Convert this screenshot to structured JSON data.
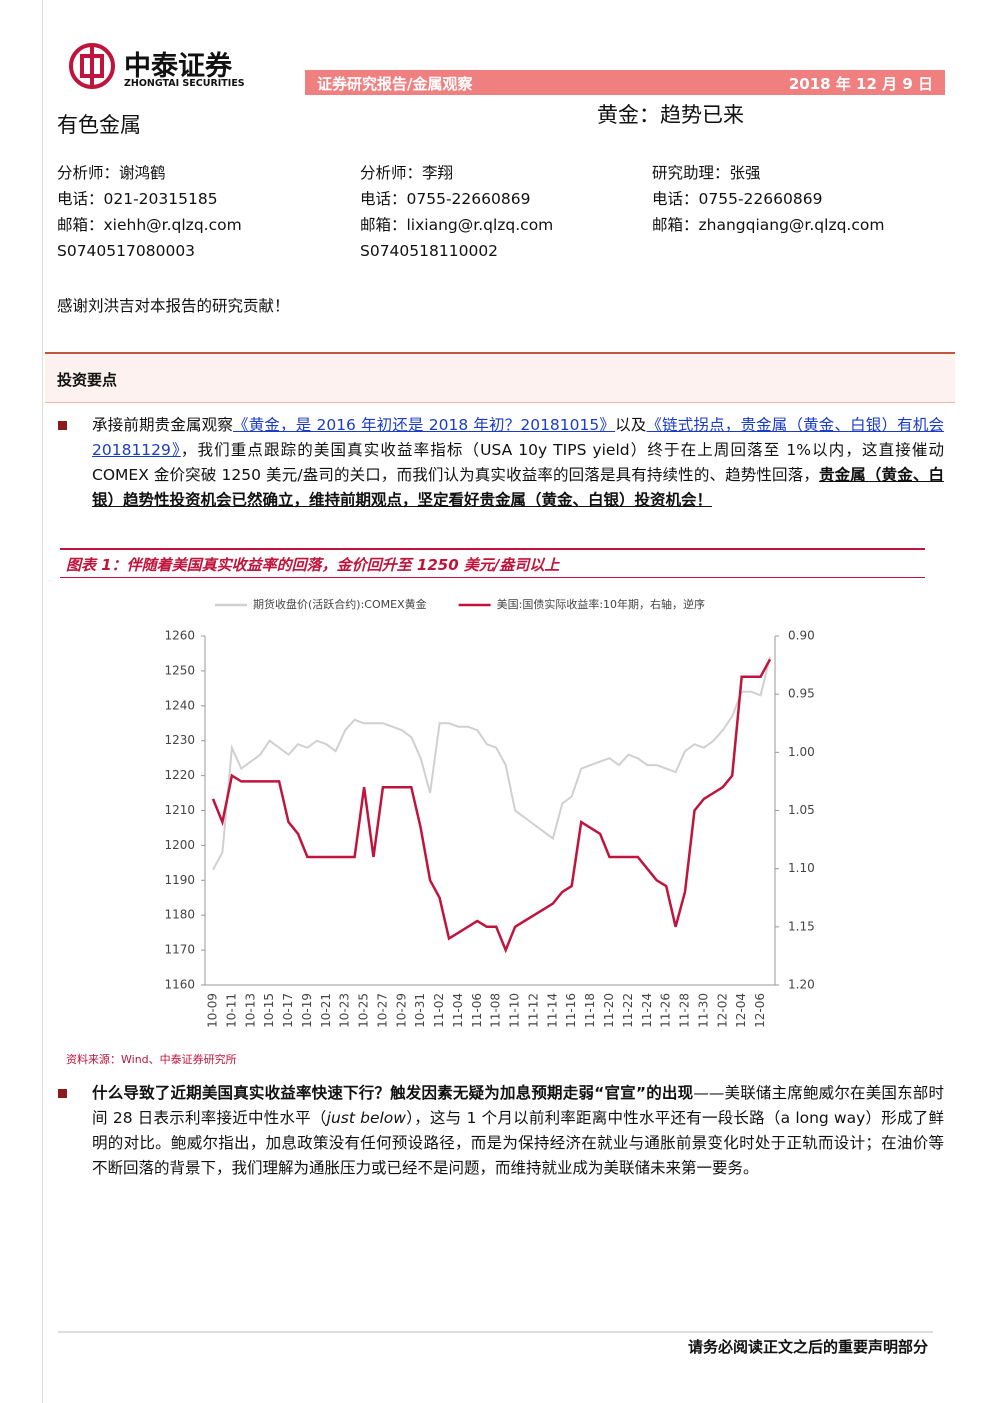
{
  "header": {
    "logo_cn": "中泰证券",
    "logo_en": "ZHONGTAI SECURITIES",
    "report_type": "证券研究报告/金属观察",
    "date": "2018 年 12 月 9 日",
    "sector": "有色金属",
    "title": "黄金：趋势已来"
  },
  "analysts": [
    {
      "lines": [
        "分析师：谢鸿鹤",
        "电话：021-20315185",
        "邮箱：xiehh@r.qlzq.com",
        "S0740517080003"
      ]
    },
    {
      "lines": [
        "分析师：李翔",
        "电话：0755-22660869",
        "邮箱：lixiang@r.qlzq.com",
        "S0740518110002"
      ]
    },
    {
      "lines": [
        "研究助理：张强",
        "电话：0755-22660869",
        "邮箱：zhangqiang@r.qlzq.com"
      ]
    }
  ],
  "thanks": "感谢刘洪吉对本报告的研究贡献！",
  "section": "投资要点",
  "paragraphs": [
    {
      "segments": [
        {
          "text": "承接前期贵金属观察",
          "style": "plain"
        },
        {
          "text": "《黄金，是 2016 年初还是 2018 年初？20181015》",
          "style": "link"
        },
        {
          "text": "以及",
          "style": "plain"
        },
        {
          "text": "《链式拐点，贵金属（黄金、白银）有机会 20181129》",
          "style": "link"
        },
        {
          "text": "，我们重点跟踪的美国真实收益率指标（USA 10y TIPS yield）终于在上周回落至 1%以内，这直接催动 COMEX 金价突破 1250 美元/盎司的关口，而我们认为真实收益率的回落是具有持续性的、趋势性回落，",
          "style": "plain"
        },
        {
          "text": "贵金属（黄金、白银）趋势性投资机会已然确立，维持前期观点，坚定看好贵金属（黄金、白银）投资机会！",
          "style": "bold-underline"
        }
      ]
    },
    {
      "segments": [
        {
          "text": "什么导致了近期美国真实收益率快速下行？触发因素无疑为加息预期走弱“官宣”的出现",
          "style": "bold"
        },
        {
          "text": "——美联储主席鲍威尔在美国东部时间 28 日表示利率接近中性水平（",
          "style": "plain"
        },
        {
          "text": "just below",
          "style": "italic"
        },
        {
          "text": "），这与 1 个月以前利率距离中性水平还有一段长路（a long way）形成了鲜明的对比。鲍威尔指出，加息政策没有任何预设路径，而是为保持经济在就业与通胀前景变化时处于正轨而设计；在油价等不断回落的背景下，我们理解为通胀压力或已经不是问题，而维持就业成为美联储未来第一要务。",
          "style": "plain"
        }
      ]
    }
  ],
  "figure_title": "图表 1：伴随着美国真实收益率的回落，金价回升至 1250 美元/盎司以上",
  "source": "资料来源：Wind、中泰证券研究所",
  "footer": "请务必阅读正文之后的重要声明部分",
  "chart_data": {
    "type": "line",
    "categories": [
      "10-09",
      null,
      "10-11",
      null,
      "10-13",
      null,
      "10-15",
      null,
      "10-17",
      null,
      "10-19",
      null,
      "10-21",
      null,
      "10-23",
      null,
      "10-25",
      null,
      "10-27",
      null,
      "10-29",
      null,
      "10-31",
      null,
      "11-02",
      null,
      "11-04",
      null,
      "11-06",
      null,
      "11-08",
      null,
      "11-10",
      null,
      "11-12",
      null,
      "11-14",
      null,
      "11-16",
      null,
      "11-18",
      null,
      "11-20",
      null,
      "11-22",
      null,
      "11-24",
      null,
      "11-26",
      null,
      "11-28",
      null,
      "11-30",
      null,
      "12-02",
      null,
      "12-04",
      null,
      "12-06",
      null
    ],
    "series": [
      {
        "name": "期货收盘价(活跃合约):COMEX黄金",
        "color": "#d0d0d0",
        "values": [
          1193,
          1198,
          1228,
          1222,
          1224,
          1226,
          1230,
          1228,
          1226,
          1229,
          1228,
          1230,
          1229,
          1227,
          1233,
          1236,
          1235,
          1235,
          1235,
          1234,
          1233,
          1231,
          1225,
          1215,
          1235,
          1235,
          1234,
          1234,
          1233,
          1229,
          1228,
          1223,
          1210,
          1208,
          1206,
          1204,
          1202,
          1212,
          1214,
          1222,
          1223,
          1224,
          1225,
          1223,
          1226,
          1225,
          1223,
          1223,
          1222,
          1221,
          1227,
          1229,
          1228,
          1230,
          1233,
          1237,
          1244,
          1244,
          1243,
          1254
        ]
      },
      {
        "name": "美国:国债实际收益率:10年期，右轴，逆序",
        "color": "#c0143c",
        "axis": "y2",
        "values": [
          1.04,
          1.06,
          1.02,
          1.025,
          1.025,
          1.025,
          1.025,
          1.025,
          1.06,
          1.07,
          1.09,
          1.09,
          1.09,
          1.09,
          1.09,
          1.09,
          1.03,
          1.09,
          1.03,
          1.03,
          1.03,
          1.03,
          1.065,
          1.11,
          1.125,
          1.16,
          1.155,
          1.15,
          1.145,
          1.15,
          1.15,
          1.17,
          1.15,
          1.145,
          1.14,
          1.135,
          1.13,
          1.12,
          1.115,
          1.06,
          1.065,
          1.07,
          1.09,
          1.09,
          1.09,
          1.09,
          1.1,
          1.11,
          1.115,
          1.15,
          1.12,
          1.05,
          1.04,
          1.035,
          1.03,
          1.02,
          0.935,
          0.935,
          0.935,
          0.92
        ]
      }
    ],
    "ylim": [
      1160,
      1260
    ],
    "yticks": [
      1160,
      1170,
      1180,
      1190,
      1200,
      1210,
      1220,
      1230,
      1240,
      1250,
      1260
    ],
    "y2lim": [
      0.9,
      1.2
    ],
    "y2_inverted": true,
    "y2ticks": [
      {
        "value": 0.9,
        "label": "0.90"
      },
      0.95,
      {
        "value": 1,
        "label": "1.00"
      },
      1.05,
      {
        "value": 1.1,
        "label": "1.10"
      },
      1.15,
      {
        "value": 1.2,
        "label": "1.20"
      }
    ],
    "grid": false,
    "legend": "top"
  }
}
